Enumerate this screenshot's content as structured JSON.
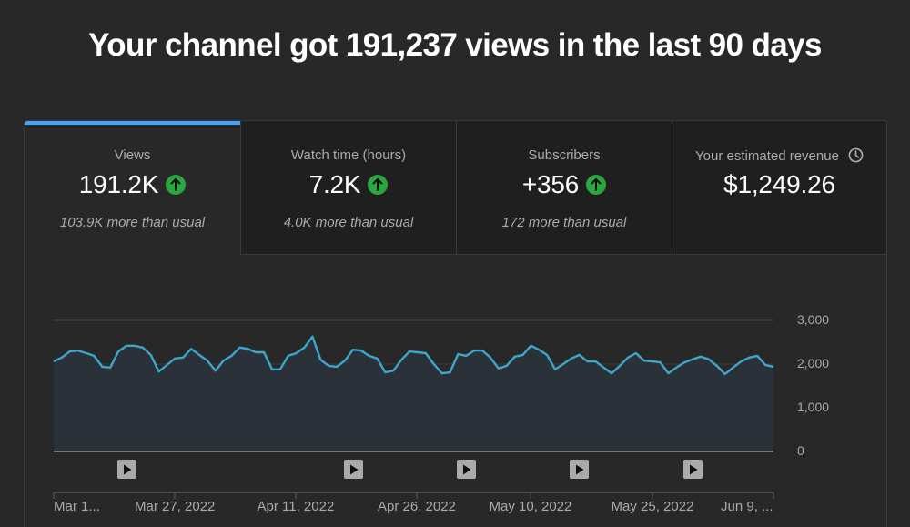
{
  "headline": "Your channel got 191,237 views in the last 90 days",
  "tabs": [
    {
      "label": "Views",
      "value": "191.2K",
      "trend": "up",
      "sub": "103.9K more than usual",
      "active": true
    },
    {
      "label": "Watch time (hours)",
      "value": "7.2K",
      "trend": "up",
      "sub": "4.0K more than usual",
      "active": false
    },
    {
      "label": "Subscribers",
      "value": "+356",
      "trend": "up",
      "sub": "172 more than usual",
      "active": false
    },
    {
      "label": "Your estimated revenue",
      "value": "$1,249.26",
      "trend": null,
      "sub": "",
      "icon": "clock-icon",
      "active": false
    }
  ],
  "colors": {
    "accent": "#3ea6ff",
    "line": "#3ea6cc",
    "trend_up": "#2ba640",
    "background": "#282828",
    "tab_inactive": "#1f1f1f"
  },
  "chart_data": {
    "type": "area",
    "title": "Views",
    "xlabel": "",
    "ylabel": "",
    "ylim": [
      0,
      3000
    ],
    "yticks": [
      "3,000",
      "2,000",
      "1,000",
      "0"
    ],
    "xticks": [
      "Mar 1...",
      "Mar 27, 2022",
      "Apr 11, 2022",
      "Apr 26, 2022",
      "May 10, 2022",
      "May 25, 2022",
      "Jun 9, ..."
    ],
    "grid": true,
    "legend": "none",
    "video_markers": 5,
    "series": [
      {
        "name": "Views",
        "values": [
          2060,
          2150,
          2290,
          2310,
          2250,
          2190,
          1940,
          1920,
          2290,
          2420,
          2420,
          2380,
          2210,
          1830,
          1980,
          2130,
          2150,
          2350,
          2210,
          2080,
          1850,
          2080,
          2190,
          2380,
          2350,
          2270,
          2270,
          1880,
          1880,
          2190,
          2250,
          2380,
          2630,
          2100,
          1960,
          1940,
          2080,
          2330,
          2310,
          2190,
          2130,
          1810,
          1850,
          2100,
          2290,
          2270,
          2250,
          2000,
          1790,
          1810,
          2230,
          2190,
          2310,
          2310,
          2150,
          1900,
          1960,
          2170,
          2210,
          2420,
          2330,
          2210,
          1880,
          2000,
          2130,
          2210,
          2060,
          2060,
          1920,
          1790,
          1960,
          2150,
          2250,
          2080,
          2060,
          2040,
          1790,
          1920,
          2040,
          2110,
          2170,
          2110,
          1960,
          1770,
          1920,
          2060,
          2150,
          2190,
          1980,
          1940
        ]
      }
    ]
  }
}
